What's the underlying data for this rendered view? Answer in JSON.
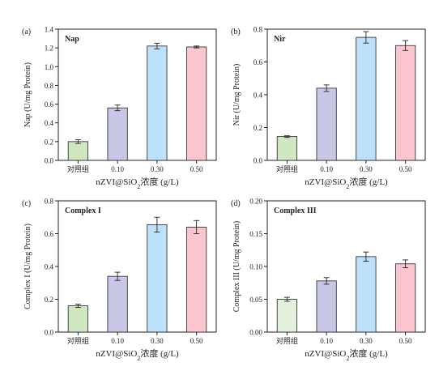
{
  "chart_data": [
    {
      "type": "bar",
      "panel_label": "(a)",
      "title": "Nap",
      "xlabel": "nZVI@SiO2浓度 (g/L)",
      "ylabel": "Nap (U/mg Protein)",
      "categories": [
        "对照组",
        "0.10",
        "0.30",
        "0.50"
      ],
      "values": [
        0.2,
        0.56,
        1.22,
        1.21
      ],
      "errors": [
        0.02,
        0.03,
        0.03,
        0.01
      ],
      "ylim": [
        0,
        1.4
      ],
      "yticks": [
        "0.0",
        "0.2",
        "0.4",
        "0.6",
        "0.8",
        "1.0",
        "1.2",
        "1.4"
      ],
      "bar_colors": [
        "#cfe8c2",
        "#c8c8e6",
        "#bde0fb",
        "#fcc6d0"
      ]
    },
    {
      "type": "bar",
      "panel_label": "(b)",
      "title": "Nir",
      "xlabel": "nZVI@SiO2浓度 (g/L)",
      "ylabel": "Nir (U/mg Protein)",
      "categories": [
        "对照组",
        "0.10",
        "0.30",
        "0.50"
      ],
      "values": [
        0.145,
        0.44,
        0.75,
        0.7
      ],
      "errors": [
        0.005,
        0.02,
        0.035,
        0.03
      ],
      "ylim": [
        0,
        0.8
      ],
      "yticks": [
        "0.0",
        "0.2",
        "0.4",
        "0.6",
        "0.8"
      ],
      "bar_colors": [
        "#cfe8c2",
        "#c8c8e6",
        "#bde0fb",
        "#fcc6d0"
      ]
    },
    {
      "type": "bar",
      "panel_label": "(c)",
      "title": "Complex I",
      "xlabel": "nZVI@SiO2浓度 (g/L)",
      "ylabel": "Complex I (U/mg Protein)",
      "categories": [
        "对照组",
        "0.10",
        "0.30",
        "0.50"
      ],
      "values": [
        0.16,
        0.34,
        0.655,
        0.64
      ],
      "errors": [
        0.01,
        0.025,
        0.045,
        0.04
      ],
      "ylim": [
        0,
        0.8
      ],
      "yticks": [
        "0.0",
        "0.2",
        "0.4",
        "0.6",
        "0.8"
      ],
      "bar_colors": [
        "#cfe8c2",
        "#c8c8e6",
        "#bde0fb",
        "#fcc6d0"
      ]
    },
    {
      "type": "bar",
      "panel_label": "(d)",
      "title": "Complex III",
      "xlabel": "nZVI@SiO2浓度 (g/L)",
      "ylabel": "Complex III (U/mg Protein)",
      "categories": [
        "对照组",
        "0.10",
        "0.30",
        "0.50"
      ],
      "values": [
        0.05,
        0.078,
        0.115,
        0.104
      ],
      "errors": [
        0.003,
        0.005,
        0.007,
        0.006
      ],
      "ylim": [
        0,
        0.2
      ],
      "yticks": [
        "0.00",
        "0.05",
        "0.10",
        "0.15",
        "0.20"
      ],
      "bar_colors": [
        "#e2f0dc",
        "#c8c8e6",
        "#bde0fb",
        "#fcc6d0"
      ]
    }
  ]
}
